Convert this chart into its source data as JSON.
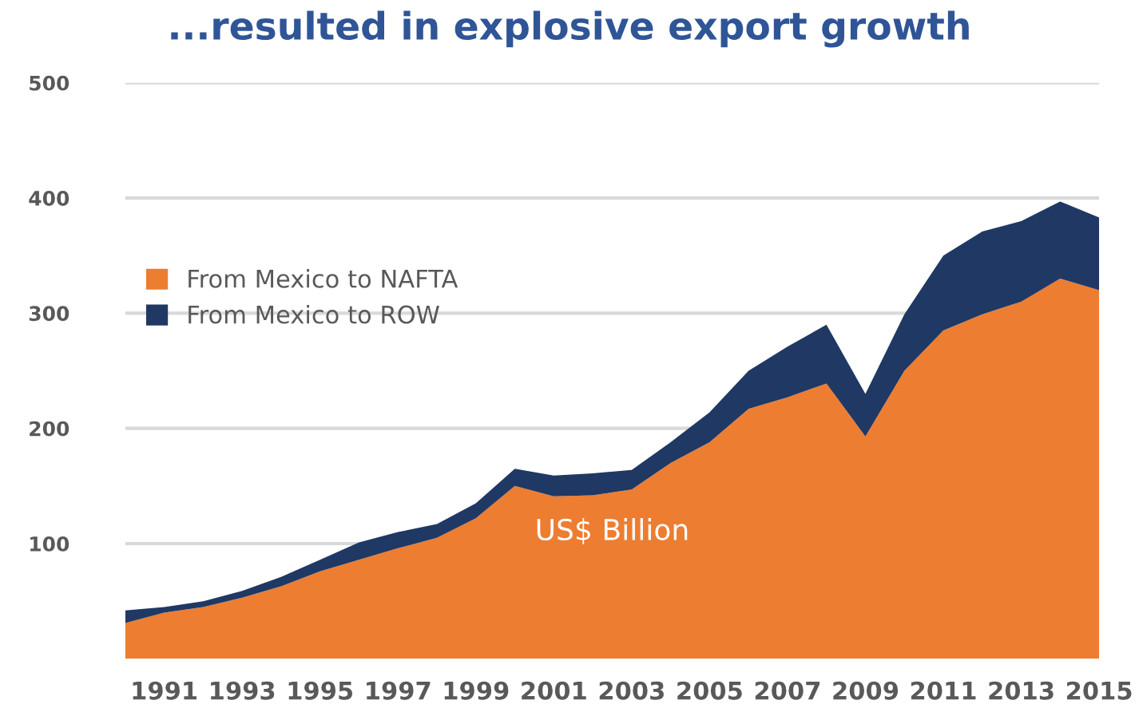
{
  "chart_data": {
    "type": "area",
    "stacked": true,
    "title": "...resulted in explosive export growth",
    "x": [
      1990,
      1991,
      1992,
      1993,
      1994,
      1995,
      1996,
      1997,
      1998,
      1999,
      2000,
      2001,
      2002,
      2003,
      2004,
      2005,
      2006,
      2007,
      2008,
      2009,
      2010,
      2011,
      2012,
      2013,
      2014,
      2015
    ],
    "series": [
      {
        "name": "From Mexico to NAFTA",
        "color": "#ed7d31",
        "values": [
          31,
          40,
          45,
          53,
          63,
          76,
          86,
          96,
          105,
          122,
          150,
          141,
          142,
          147,
          170,
          188,
          217,
          227,
          239,
          193,
          250,
          285,
          299,
          310,
          330,
          320
        ]
      },
      {
        "name": "From Mexico to ROW",
        "color": "#203864",
        "values": [
          11,
          5,
          5,
          6,
          8,
          10,
          15,
          14,
          12,
          13,
          15,
          18,
          19,
          17,
          18,
          26,
          33,
          44,
          51,
          37,
          49,
          65,
          72,
          70,
          67,
          63
        ]
      }
    ],
    "xlim": [
      1990,
      2015
    ],
    "xticks": [
      1991,
      1993,
      1995,
      1997,
      1999,
      2001,
      2003,
      2005,
      2007,
      2009,
      2011,
      2013,
      2015
    ],
    "ylim": [
      0,
      500
    ],
    "yticks": [
      100,
      200,
      300,
      400,
      500
    ],
    "grid": "y",
    "legend": "left",
    "annotations": [
      "US$ Billion"
    ]
  }
}
